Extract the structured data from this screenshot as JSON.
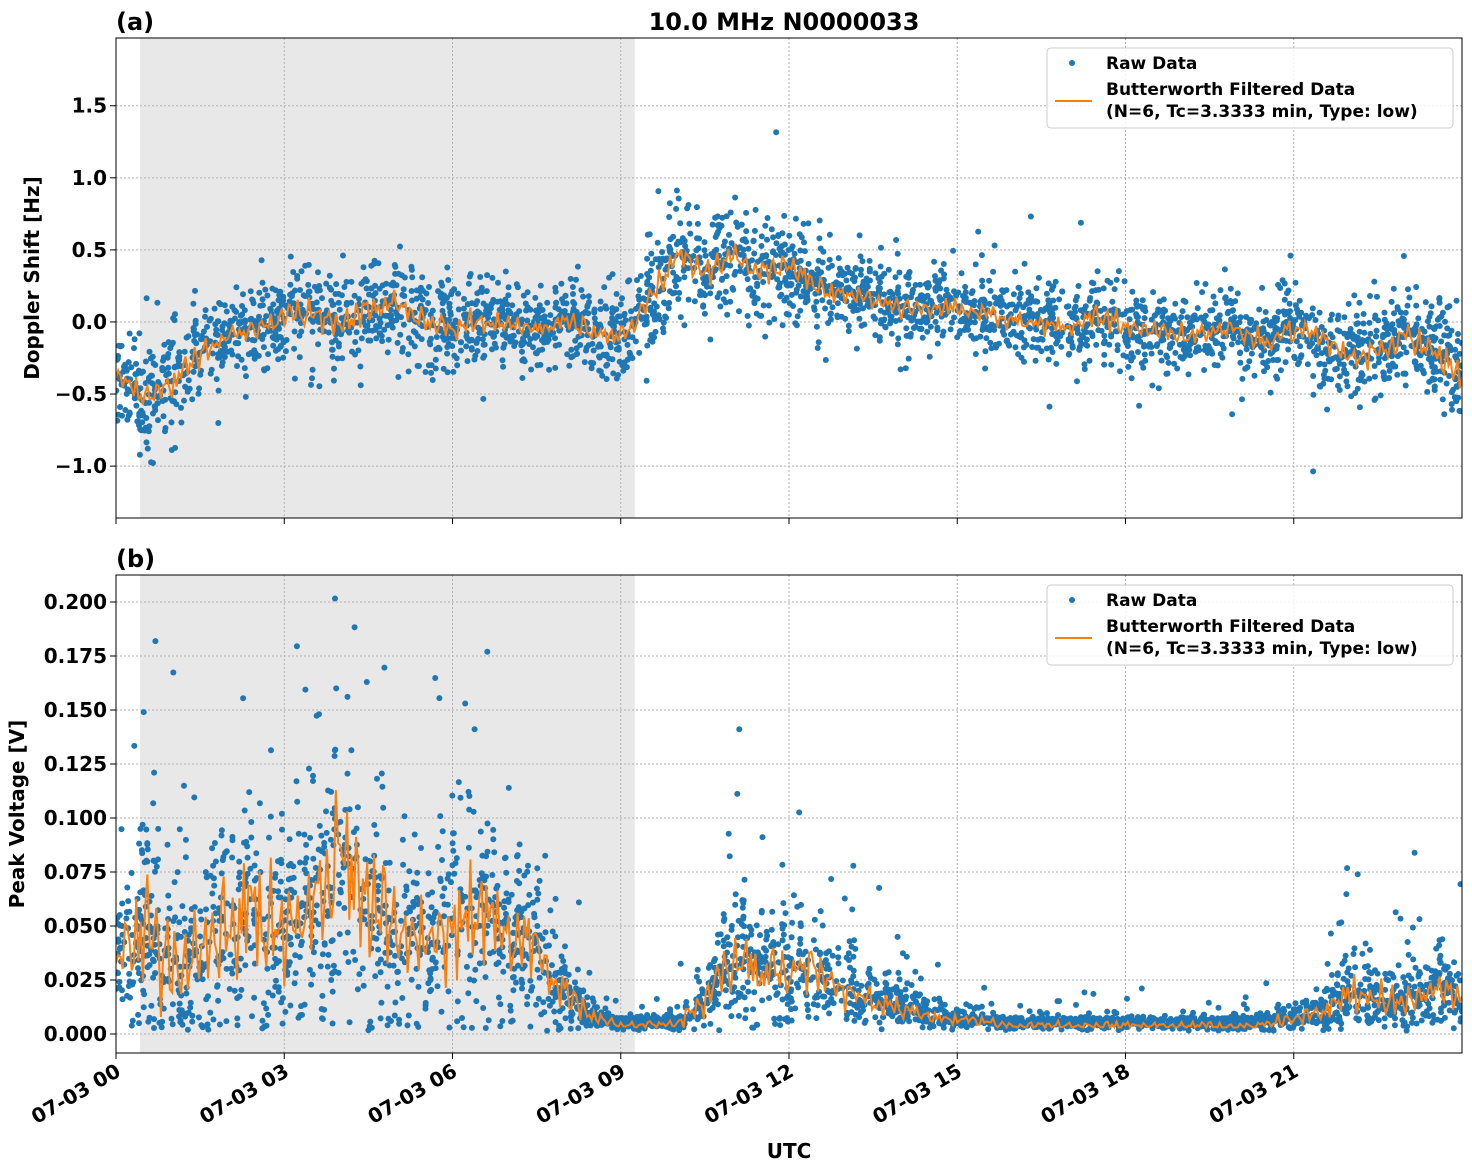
{
  "chart_data": [
    {
      "type": "scatter",
      "panel_label": "(a)",
      "title": "10.0 MHz N0000033",
      "xlabel": "",
      "ylabel": "Doppler Shift [Hz]",
      "xlim_hours": [
        0,
        24
      ],
      "ylim": [
        -1.36,
        1.97
      ],
      "yticks": [
        1.5,
        1.0,
        0.5,
        0.0,
        -0.5,
        -1.0
      ],
      "ytick_labels": [
        "1.5",
        "1.0",
        "0.5",
        "0.0",
        "−0.5",
        "−1.0"
      ],
      "grid": true,
      "legend_placement": "upper right",
      "shaded_region_hours": [
        0.43,
        9.25
      ],
      "series": [
        {
          "name": "Raw Data",
          "kind": "scatter",
          "color": "#1f77b4"
        },
        {
          "name": "Butterworth Filtered Data\n(N=6, Tc=3.3333 min, Type: low)",
          "kind": "line",
          "color": "#ff7f0e"
        }
      ],
      "legend": [
        "Raw Data",
        "Butterworth Filtered Data",
        "(N=6, Tc=3.3333 min, Type: low)"
      ],
      "x_hours": [
        0,
        0.5,
        1,
        1.5,
        2,
        2.5,
        3,
        3.5,
        4,
        4.5,
        5,
        5.5,
        6,
        6.5,
        7,
        7.5,
        8,
        8.5,
        9,
        9.5,
        10,
        10.5,
        11,
        11.5,
        12,
        12.5,
        13,
        13.5,
        14,
        14.5,
        15,
        15.5,
        16,
        16.5,
        17,
        17.5,
        18,
        18.5,
        19,
        19.5,
        20,
        20.5,
        21,
        21.5,
        22,
        22.5,
        23,
        23.5,
        24
      ],
      "filtered_values": [
        -0.38,
        -0.5,
        -0.45,
        -0.2,
        -0.1,
        -0.05,
        0.05,
        0.05,
        0.0,
        0.08,
        0.12,
        0.0,
        -0.05,
        0.0,
        -0.03,
        -0.05,
        0.0,
        -0.05,
        -0.12,
        0.15,
        0.45,
        0.35,
        0.45,
        0.35,
        0.4,
        0.25,
        0.2,
        0.15,
        0.1,
        0.1,
        0.1,
        0.05,
        0.0,
        0.0,
        -0.05,
        0.05,
        -0.05,
        -0.05,
        -0.1,
        -0.05,
        -0.05,
        -0.15,
        -0.05,
        -0.1,
        -0.25,
        -0.2,
        -0.1,
        -0.2,
        -0.4
      ],
      "raw_spread": [
        0.3,
        0.35,
        0.35,
        0.28,
        0.25,
        0.25,
        0.28,
        0.3,
        0.3,
        0.3,
        0.3,
        0.28,
        0.28,
        0.25,
        0.25,
        0.22,
        0.22,
        0.28,
        0.3,
        0.3,
        0.35,
        0.35,
        0.35,
        0.32,
        0.3,
        0.28,
        0.25,
        0.25,
        0.25,
        0.22,
        0.22,
        0.22,
        0.25,
        0.25,
        0.25,
        0.25,
        0.25,
        0.25,
        0.25,
        0.25,
        0.25,
        0.25,
        0.25,
        0.25,
        0.28,
        0.28,
        0.3,
        0.3,
        0.35
      ]
    },
    {
      "type": "scatter",
      "panel_label": "(b)",
      "xlabel": "UTC",
      "ylabel": "Peak Voltage [V]",
      "xlim_hours": [
        0,
        24
      ],
      "ylim": [
        -0.0088,
        0.2125
      ],
      "yticks": [
        0.2,
        0.175,
        0.15,
        0.125,
        0.1,
        0.075,
        0.05,
        0.025,
        0.0
      ],
      "ytick_labels": [
        "0.200",
        "0.175",
        "0.150",
        "0.125",
        "0.100",
        "0.075",
        "0.050",
        "0.025",
        "0.000"
      ],
      "xtick_hours": [
        0,
        3,
        6,
        9,
        12,
        15,
        18,
        21
      ],
      "xtick_labels": [
        "07-03 00",
        "07-03 03",
        "07-03 06",
        "07-03 09",
        "07-03 12",
        "07-03 15",
        "07-03 18",
        "07-03 21"
      ],
      "grid": true,
      "legend_placement": "upper right",
      "shaded_region_hours": [
        0.43,
        9.25
      ],
      "series": [
        {
          "name": "Raw Data",
          "kind": "scatter",
          "color": "#1f77b4"
        },
        {
          "name": "Butterworth Filtered Data\n(N=6, Tc=3.3333 min, Type: low)",
          "kind": "line",
          "color": "#ff7f0e"
        }
      ],
      "legend": [
        "Raw Data",
        "Butterworth Filtered Data",
        "(N=6, Tc=3.3333 min, Type: low)"
      ],
      "x_hours": [
        0,
        0.5,
        1,
        1.5,
        2,
        2.5,
        3,
        3.5,
        4,
        4.5,
        5,
        5.5,
        6,
        6.5,
        7,
        7.5,
        8,
        8.5,
        9,
        9.5,
        10,
        10.5,
        11,
        11.5,
        12,
        12.5,
        13,
        13.5,
        14,
        14.5,
        15,
        15.5,
        16,
        16.5,
        17,
        17.5,
        18,
        18.5,
        19,
        19.5,
        20,
        20.5,
        21,
        21.5,
        22,
        22.5,
        23,
        23.5,
        24
      ],
      "filtered_values": [
        0.03,
        0.05,
        0.03,
        0.035,
        0.05,
        0.055,
        0.05,
        0.06,
        0.08,
        0.06,
        0.05,
        0.045,
        0.05,
        0.06,
        0.045,
        0.04,
        0.02,
        0.008,
        0.004,
        0.004,
        0.005,
        0.015,
        0.035,
        0.03,
        0.03,
        0.03,
        0.02,
        0.015,
        0.012,
        0.008,
        0.007,
        0.005,
        0.004,
        0.004,
        0.004,
        0.004,
        0.004,
        0.004,
        0.004,
        0.004,
        0.003,
        0.005,
        0.007,
        0.01,
        0.02,
        0.015,
        0.015,
        0.02,
        0.018
      ],
      "raw_spread": [
        0.025,
        0.04,
        0.03,
        0.03,
        0.04,
        0.045,
        0.04,
        0.045,
        0.05,
        0.045,
        0.04,
        0.035,
        0.04,
        0.045,
        0.035,
        0.03,
        0.015,
        0.006,
        0.003,
        0.003,
        0.004,
        0.012,
        0.025,
        0.022,
        0.022,
        0.02,
        0.015,
        0.01,
        0.008,
        0.006,
        0.005,
        0.004,
        0.003,
        0.003,
        0.003,
        0.003,
        0.003,
        0.003,
        0.003,
        0.003,
        0.003,
        0.004,
        0.005,
        0.008,
        0.015,
        0.012,
        0.012,
        0.014,
        0.012
      ]
    }
  ]
}
